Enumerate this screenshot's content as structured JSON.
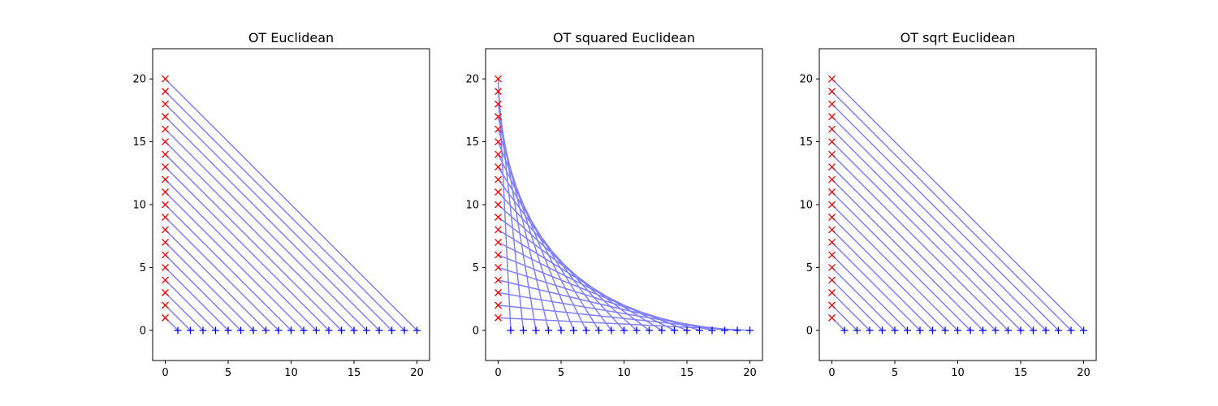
{
  "colors": {
    "source_marker": "#ff0000",
    "target_marker": "#0000ff",
    "transport_line": "#7f7fff",
    "axes_frame": "#000000"
  },
  "chart_data": [
    {
      "type": "scatter",
      "title": "OT Euclidean",
      "xlabel": "",
      "ylabel": "",
      "xlim": [
        -1,
        21
      ],
      "ylim": [
        -2.4,
        22.4
      ],
      "xticks": [
        0,
        5,
        10,
        15,
        20
      ],
      "yticks": [
        0,
        5,
        10,
        15,
        20
      ],
      "grid": false,
      "series": [
        {
          "marker": "x",
          "color": "#ff0000",
          "points_x": [
            0,
            0,
            0,
            0,
            0,
            0,
            0,
            0,
            0,
            0,
            0,
            0,
            0,
            0,
            0,
            0,
            0,
            0,
            0,
            0
          ],
          "points_y": [
            1,
            2,
            3,
            4,
            5,
            6,
            7,
            8,
            9,
            10,
            11,
            12,
            13,
            14,
            15,
            16,
            17,
            18,
            19,
            20
          ]
        },
        {
          "marker": "+",
          "color": "#0000ff",
          "points_x": [
            1,
            2,
            3,
            4,
            5,
            6,
            7,
            8,
            9,
            10,
            11,
            12,
            13,
            14,
            15,
            16,
            17,
            18,
            19,
            20
          ],
          "points_y": [
            0,
            0,
            0,
            0,
            0,
            0,
            0,
            0,
            0,
            0,
            0,
            0,
            0,
            0,
            0,
            0,
            0,
            0,
            0,
            0
          ]
        }
      ],
      "transport_map": [
        0,
        1,
        2,
        3,
        4,
        5,
        6,
        7,
        8,
        9,
        10,
        11,
        12,
        13,
        14,
        15,
        16,
        17,
        18,
        19
      ]
    },
    {
      "type": "scatter",
      "title": "OT squared Euclidean",
      "xlabel": "",
      "ylabel": "",
      "xlim": [
        -1,
        21
      ],
      "ylim": [
        -2.4,
        22.4
      ],
      "xticks": [
        0,
        5,
        10,
        15,
        20
      ],
      "yticks": [
        0,
        5,
        10,
        15,
        20
      ],
      "grid": false,
      "series": [
        {
          "marker": "x",
          "color": "#ff0000",
          "points_x": [
            0,
            0,
            0,
            0,
            0,
            0,
            0,
            0,
            0,
            0,
            0,
            0,
            0,
            0,
            0,
            0,
            0,
            0,
            0,
            0
          ],
          "points_y": [
            1,
            2,
            3,
            4,
            5,
            6,
            7,
            8,
            9,
            10,
            11,
            12,
            13,
            14,
            15,
            16,
            17,
            18,
            19,
            20
          ]
        },
        {
          "marker": "+",
          "color": "#0000ff",
          "points_x": [
            1,
            2,
            3,
            4,
            5,
            6,
            7,
            8,
            9,
            10,
            11,
            12,
            13,
            14,
            15,
            16,
            17,
            18,
            19,
            20
          ],
          "points_y": [
            0,
            0,
            0,
            0,
            0,
            0,
            0,
            0,
            0,
            0,
            0,
            0,
            0,
            0,
            0,
            0,
            0,
            0,
            0,
            0
          ]
        }
      ],
      "transport_map": [
        19,
        18,
        17,
        16,
        15,
        14,
        13,
        12,
        11,
        10,
        9,
        8,
        7,
        6,
        5,
        4,
        3,
        2,
        1,
        0
      ]
    },
    {
      "type": "scatter",
      "title": "OT sqrt Euclidean",
      "xlabel": "",
      "ylabel": "",
      "xlim": [
        -1,
        21
      ],
      "ylim": [
        -2.4,
        22.4
      ],
      "xticks": [
        0,
        5,
        10,
        15,
        20
      ],
      "yticks": [
        0,
        5,
        10,
        15,
        20
      ],
      "grid": false,
      "series": [
        {
          "marker": "x",
          "color": "#ff0000",
          "points_x": [
            0,
            0,
            0,
            0,
            0,
            0,
            0,
            0,
            0,
            0,
            0,
            0,
            0,
            0,
            0,
            0,
            0,
            0,
            0,
            0
          ],
          "points_y": [
            1,
            2,
            3,
            4,
            5,
            6,
            7,
            8,
            9,
            10,
            11,
            12,
            13,
            14,
            15,
            16,
            17,
            18,
            19,
            20
          ]
        },
        {
          "marker": "+",
          "color": "#0000ff",
          "points_x": [
            1,
            2,
            3,
            4,
            5,
            6,
            7,
            8,
            9,
            10,
            11,
            12,
            13,
            14,
            15,
            16,
            17,
            18,
            19,
            20
          ],
          "points_y": [
            0,
            0,
            0,
            0,
            0,
            0,
            0,
            0,
            0,
            0,
            0,
            0,
            0,
            0,
            0,
            0,
            0,
            0,
            0,
            0
          ]
        }
      ],
      "transport_map": [
        0,
        1,
        2,
        3,
        4,
        5,
        6,
        7,
        8,
        9,
        10,
        11,
        12,
        13,
        14,
        15,
        16,
        17,
        18,
        19
      ]
    }
  ]
}
